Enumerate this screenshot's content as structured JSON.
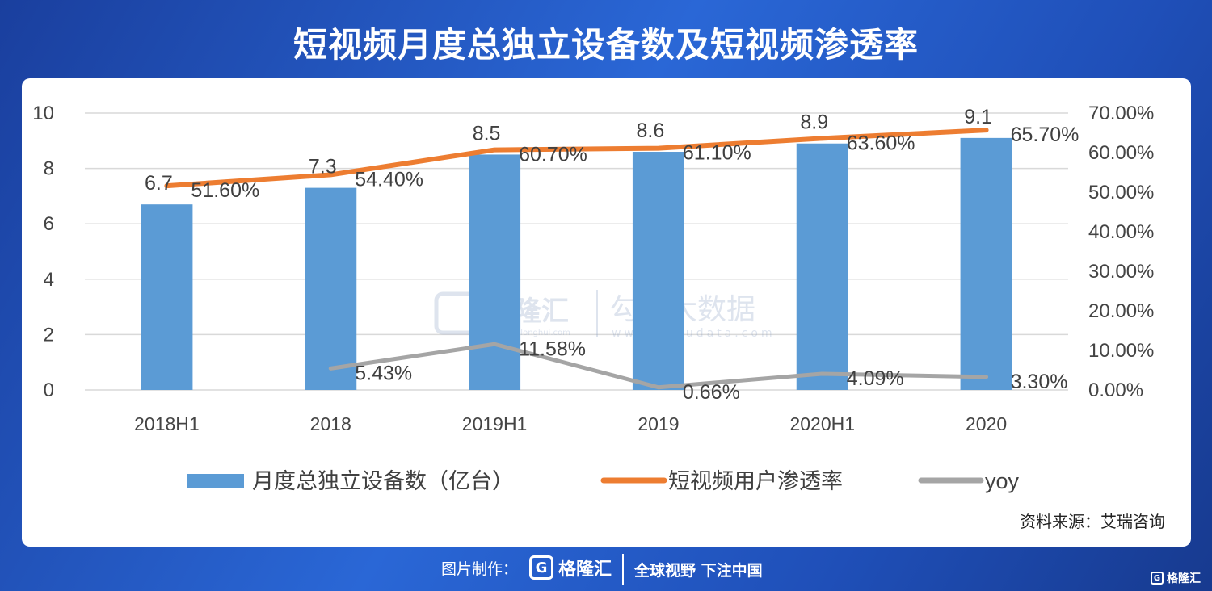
{
  "header": {
    "title": "短视频月度总独立设备数及短视频渗透率"
  },
  "chart_data": {
    "type": "bar",
    "categories": [
      "2018H1",
      "2018",
      "2019H1",
      "2019",
      "2020H1",
      "2020"
    ],
    "ylim": [
      0,
      10
    ],
    "yticks": [
      "0",
      "2",
      "4",
      "6",
      "8",
      "10"
    ],
    "y2lim": [
      0,
      70
    ],
    "y2ticks": [
      "0.00%",
      "10.00%",
      "20.00%",
      "30.00%",
      "40.00%",
      "50.00%",
      "60.00%",
      "70.00%"
    ],
    "series": [
      {
        "name": "月度总独立设备数（亿台）",
        "type": "bar",
        "color": "#5b9bd5",
        "values": [
          6.7,
          7.3,
          8.5,
          8.6,
          8.9,
          9.1
        ],
        "labels": [
          "6.7",
          "7.3",
          "8.5",
          "8.6",
          "8.9",
          "9.1"
        ]
      },
      {
        "name": "短视频用户渗透率",
        "type": "line",
        "axis": "right",
        "color": "#ed7d31",
        "values": [
          51.6,
          54.4,
          60.7,
          61.1,
          63.6,
          65.7
        ],
        "labels": [
          "51.60%",
          "54.40%",
          "60.70%",
          "61.10%",
          "63.60%",
          "65.70%"
        ]
      },
      {
        "name": "yoy",
        "type": "line",
        "axis": "right",
        "color": "#a5a5a5",
        "values": [
          null,
          5.43,
          11.58,
          0.66,
          4.09,
          3.3
        ],
        "labels": [
          "",
          "5.43%",
          "11.58%",
          "0.66%",
          "4.09%",
          "3.30%"
        ]
      }
    ],
    "legend": "bottom",
    "grid": true
  },
  "watermark": {
    "brand": "格隆汇",
    "brand_url": "www.gelonghui.com",
    "brand2": "勾股大数据",
    "brand2_url": "www.gogudata.com"
  },
  "source": "资料来源：艾瑞咨询",
  "footer": {
    "credit": "图片制作：",
    "logo_mark": "G",
    "logo_text": "格隆汇",
    "slogan": "全球视野 下注中国",
    "corner_text": "格隆汇"
  }
}
